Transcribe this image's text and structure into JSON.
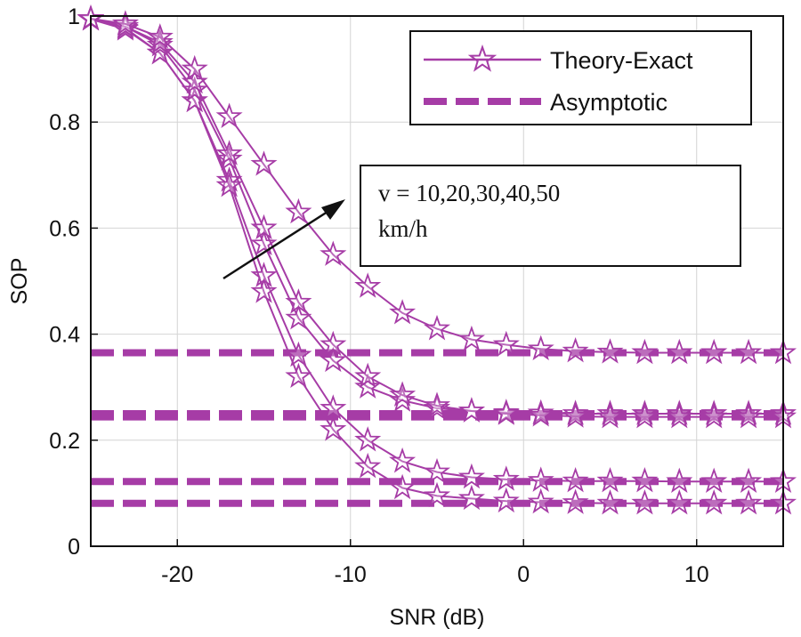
{
  "chart_data": {
    "type": "line",
    "title": "",
    "xlabel": "SNR (dB)",
    "ylabel": "SOP",
    "xlim": [
      -25,
      15
    ],
    "ylim": [
      0,
      1
    ],
    "xticks": [
      -20,
      -10,
      0,
      10
    ],
    "xtick_labels": [
      "-20",
      "-10",
      "0",
      "10"
    ],
    "yticks": [
      0,
      0.2,
      0.4,
      0.6,
      0.8,
      1
    ],
    "ytick_labels": [
      "0",
      "0.2",
      "0.4",
      "0.6",
      "0.8",
      "1"
    ],
    "grid": true,
    "legend_position": "top-right",
    "legend": [
      {
        "label": "Theory-Exact",
        "style": "solid-star"
      },
      {
        "label": "Asymptotic",
        "style": "dashed"
      }
    ],
    "annotation": {
      "line1": "v = 10,20,30,40,50",
      "line2": "km/h",
      "arrow": "increasing v"
    },
    "color": "#a63ca6",
    "x": [
      -25,
      -23,
      -21,
      -19,
      -17,
      -15,
      -13,
      -11,
      -9,
      -7,
      -5,
      -3,
      -1,
      1,
      3,
      5,
      7,
      9,
      11,
      13,
      15
    ],
    "series": [
      {
        "name": "v=10 exact",
        "kind": "exact",
        "values": [
          0.994,
          0.977,
          0.93,
          0.84,
          0.69,
          0.51,
          0.36,
          0.26,
          0.2,
          0.16,
          0.14,
          0.13,
          0.126,
          0.124,
          0.123,
          0.123,
          0.123,
          0.122,
          0.122,
          0.122,
          0.122
        ]
      },
      {
        "name": "v=20 exact",
        "kind": "exact",
        "values": [
          0.994,
          0.975,
          0.93,
          0.84,
          0.68,
          0.48,
          0.32,
          0.22,
          0.15,
          0.11,
          0.095,
          0.09,
          0.085,
          0.083,
          0.082,
          0.081,
          0.081,
          0.081,
          0.081,
          0.081,
          0.081
        ]
      },
      {
        "name": "v=30 exact",
        "kind": "exact",
        "values": [
          0.995,
          0.98,
          0.945,
          0.86,
          0.73,
          0.57,
          0.43,
          0.35,
          0.3,
          0.275,
          0.26,
          0.255,
          0.252,
          0.251,
          0.25,
          0.25,
          0.25,
          0.25,
          0.25,
          0.25,
          0.25
        ]
      },
      {
        "name": "v=40 exact",
        "kind": "exact",
        "values": [
          0.995,
          0.98,
          0.95,
          0.875,
          0.74,
          0.6,
          0.46,
          0.38,
          0.32,
          0.285,
          0.265,
          0.255,
          0.25,
          0.247,
          0.245,
          0.244,
          0.244,
          0.244,
          0.244,
          0.244,
          0.244
        ]
      },
      {
        "name": "v=50 exact",
        "kind": "exact",
        "values": [
          0.995,
          0.985,
          0.96,
          0.9,
          0.81,
          0.72,
          0.63,
          0.55,
          0.49,
          0.44,
          0.41,
          0.39,
          0.38,
          0.372,
          0.368,
          0.366,
          0.365,
          0.365,
          0.365,
          0.365,
          0.365
        ]
      },
      {
        "name": "asymptote 1",
        "kind": "asymptotic",
        "y": 0.365
      },
      {
        "name": "asymptote 2",
        "kind": "asymptotic",
        "y": 0.25
      },
      {
        "name": "asymptote 3",
        "kind": "asymptotic",
        "y": 0.244
      },
      {
        "name": "asymptote 4",
        "kind": "asymptotic",
        "y": 0.122
      },
      {
        "name": "asymptote 5",
        "kind": "asymptotic",
        "y": 0.081
      }
    ]
  }
}
